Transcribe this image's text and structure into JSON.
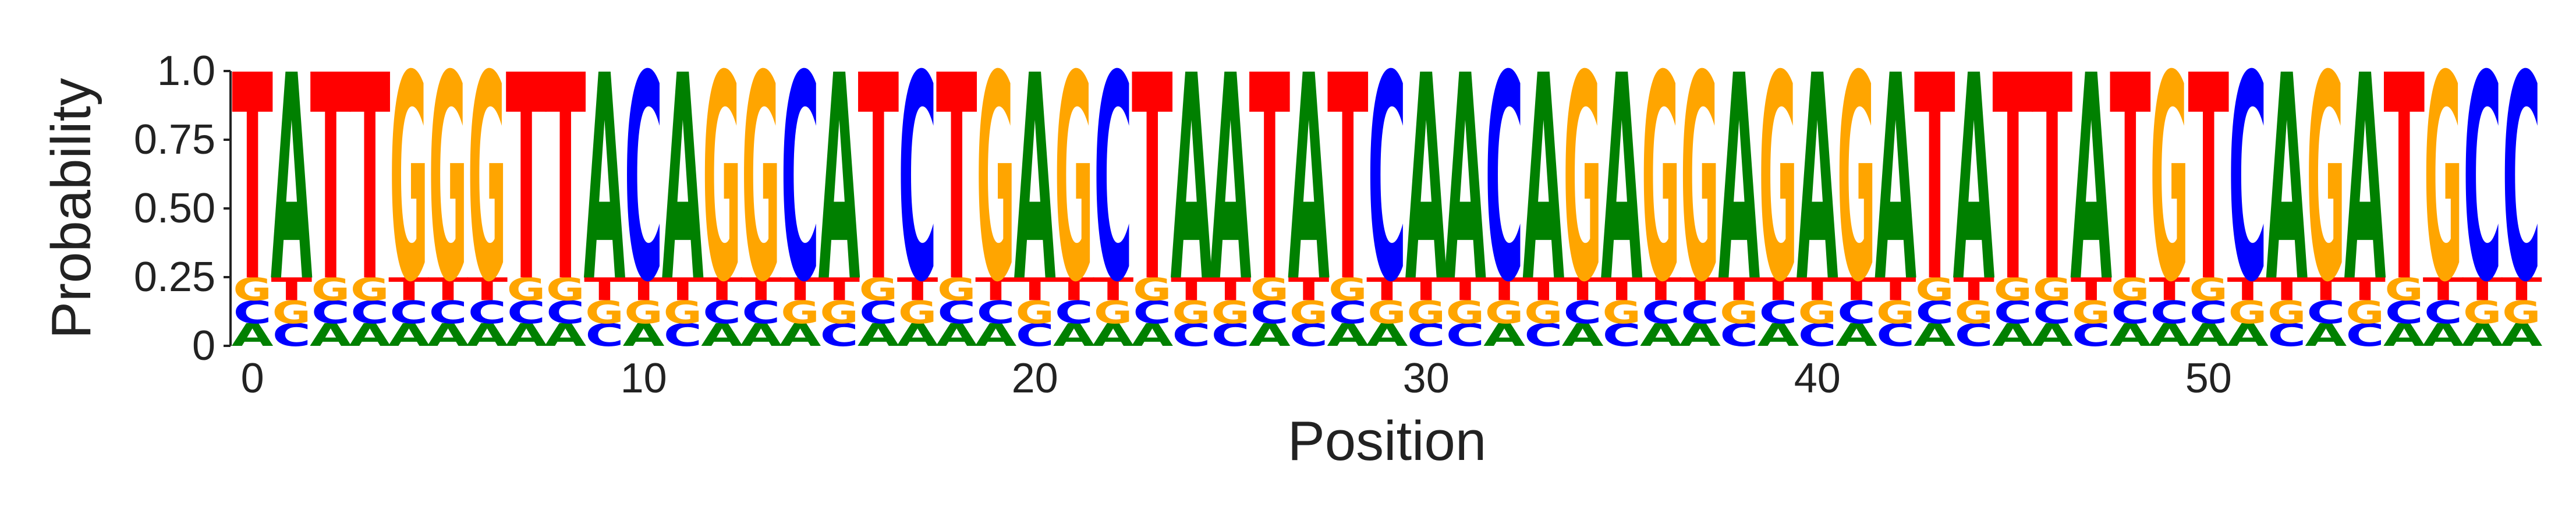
{
  "chart_data": {
    "type": "sequence-logo",
    "title": "",
    "xlabel": "Position",
    "ylabel": "Probability",
    "ylim": [
      0,
      1.0
    ],
    "yticks": [
      0,
      0.25,
      0.5,
      0.75,
      1.0
    ],
    "ytick_labels": [
      "0",
      "0.25",
      "0.50",
      "0.75",
      "1.0"
    ],
    "xticks": [
      0,
      10,
      20,
      30,
      40,
      50
    ],
    "xtick_labels": [
      "0",
      "10",
      "20",
      "30",
      "40",
      "50"
    ],
    "xlim": [
      -0.5,
      58.5
    ],
    "consensus": "TATTGGGTTACAGGCATCTGAGCTAATATCAACAGAGGAGAGATATTATGTCAGATGCC",
    "background_probability": 0.083,
    "consensus_probability": 0.75,
    "background_stack_order": [
      "A",
      "C",
      "G",
      "T"
    ],
    "letter_colors": {
      "A": "#008000",
      "C": "#0000ff",
      "G": "#ffa500",
      "T": "#ff0000"
    },
    "grid": false
  }
}
